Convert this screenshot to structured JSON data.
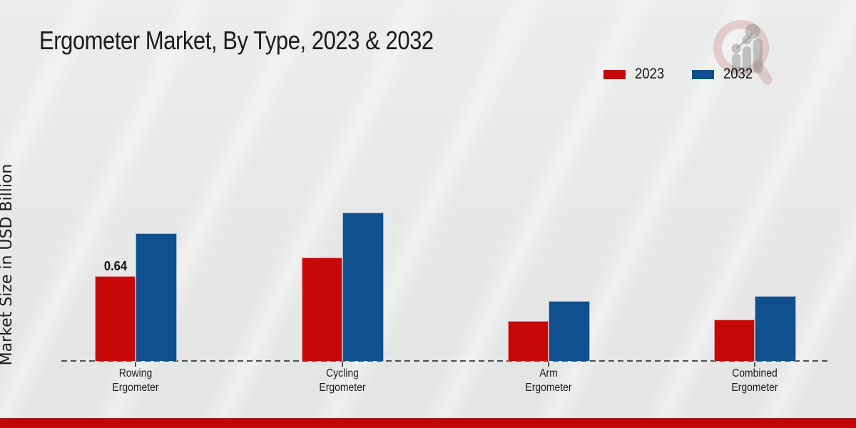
{
  "page_title": "Ergometer Market, By Type, 2023 & 2032",
  "chart_data": {
    "type": "bar",
    "title": "Ergometer Market, By Type, 2023 & 2032",
    "xlabel": "",
    "ylabel": "Market Size in USD Billion",
    "categories": [
      "Rowing Ergometer",
      "Cycling Ergometer",
      "Arm Ergometer",
      "Combined Ergometer"
    ],
    "series": [
      {
        "name": "2023",
        "color": "#c60808",
        "values": [
          0.64,
          0.78,
          0.3,
          0.31
        ]
      },
      {
        "name": "2032",
        "color": "#10508e",
        "values": [
          0.96,
          1.12,
          0.45,
          0.49
        ]
      }
    ],
    "annotations": [
      {
        "series_index": 0,
        "category_index": 0,
        "text": "0.64"
      }
    ],
    "ylim": [
      0,
      1.72
    ],
    "grid": false,
    "baseline_style": "dashed",
    "legend_position": "top-right"
  },
  "colors": {
    "series_2023": "#c60808",
    "series_2032": "#10508e",
    "footer_accent": "#c10505",
    "baseline": "#4f4f4f"
  },
  "watermark": {
    "icon": "magnifier-growth-chart-logo"
  }
}
